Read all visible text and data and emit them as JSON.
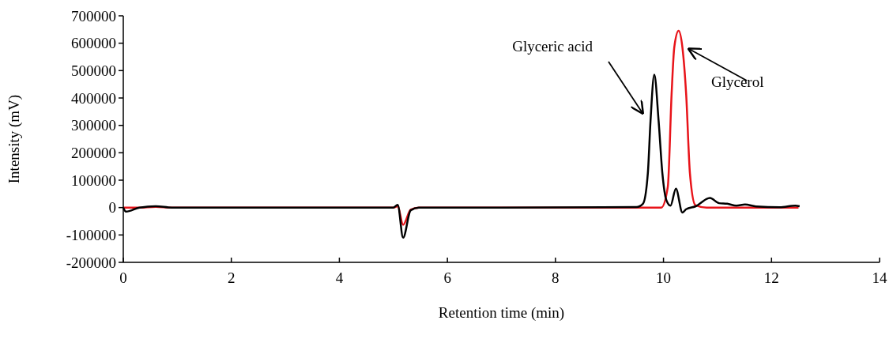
{
  "chart_data": {
    "type": "line",
    "xlabel": "Retention time (min)",
    "ylabel": "Intensity (mV)",
    "xlim": [
      0,
      14
    ],
    "xticks": [
      0,
      2,
      4,
      6,
      8,
      10,
      12,
      14
    ],
    "ylim": [
      -200000,
      700000
    ],
    "yticks": [
      -200000,
      -100000,
      0,
      100000,
      200000,
      300000,
      400000,
      500000,
      600000,
      700000
    ],
    "grid": false,
    "marker": "none",
    "line_style": "solid",
    "annotations": [
      "Glyceric acid",
      "Glycerol"
    ],
    "series": [
      {
        "color": "#e8141a",
        "x": [
          0,
          0.3,
          0.6,
          0.9,
          2,
          4,
          5.0,
          5.08,
          5.18,
          5.32,
          5.47,
          7,
          9.5,
          9.96,
          10.08,
          10.15,
          10.2,
          10.28,
          10.35,
          10.42,
          10.49,
          10.59,
          10.8,
          12.5
        ],
        "values": [
          0,
          0,
          3000,
          0,
          0,
          0,
          0,
          5000,
          -63000,
          -8000,
          0,
          0,
          0,
          0,
          76000,
          413000,
          585000,
          645000,
          585000,
          413000,
          124000,
          9000,
          0,
          0
        ]
      },
      {
        "color": "#000000",
        "x": [
          0,
          0.05,
          0.3,
          0.6,
          0.9,
          2,
          4,
          5.0,
          5.08,
          5.18,
          5.32,
          5.47,
          7,
          9.5,
          9.62,
          9.71,
          9.76,
          9.83,
          9.91,
          9.98,
          10.05,
          10.13,
          10.23,
          10.35,
          10.42,
          10.59,
          10.86,
          11.03,
          11.18,
          11.35,
          11.51,
          11.71,
          12.15,
          12.44,
          12.52
        ],
        "values": [
          0,
          -15000,
          0,
          5000,
          0,
          0,
          0,
          0,
          10000,
          -110000,
          -10000,
          0,
          0,
          2000,
          14000,
          124000,
          316000,
          485000,
          316000,
          124000,
          29000,
          7000,
          69000,
          -18000,
          -6000,
          4000,
          35000,
          16000,
          14000,
          7000,
          11000,
          4000,
          1000,
          7000,
          5000
        ]
      }
    ]
  }
}
